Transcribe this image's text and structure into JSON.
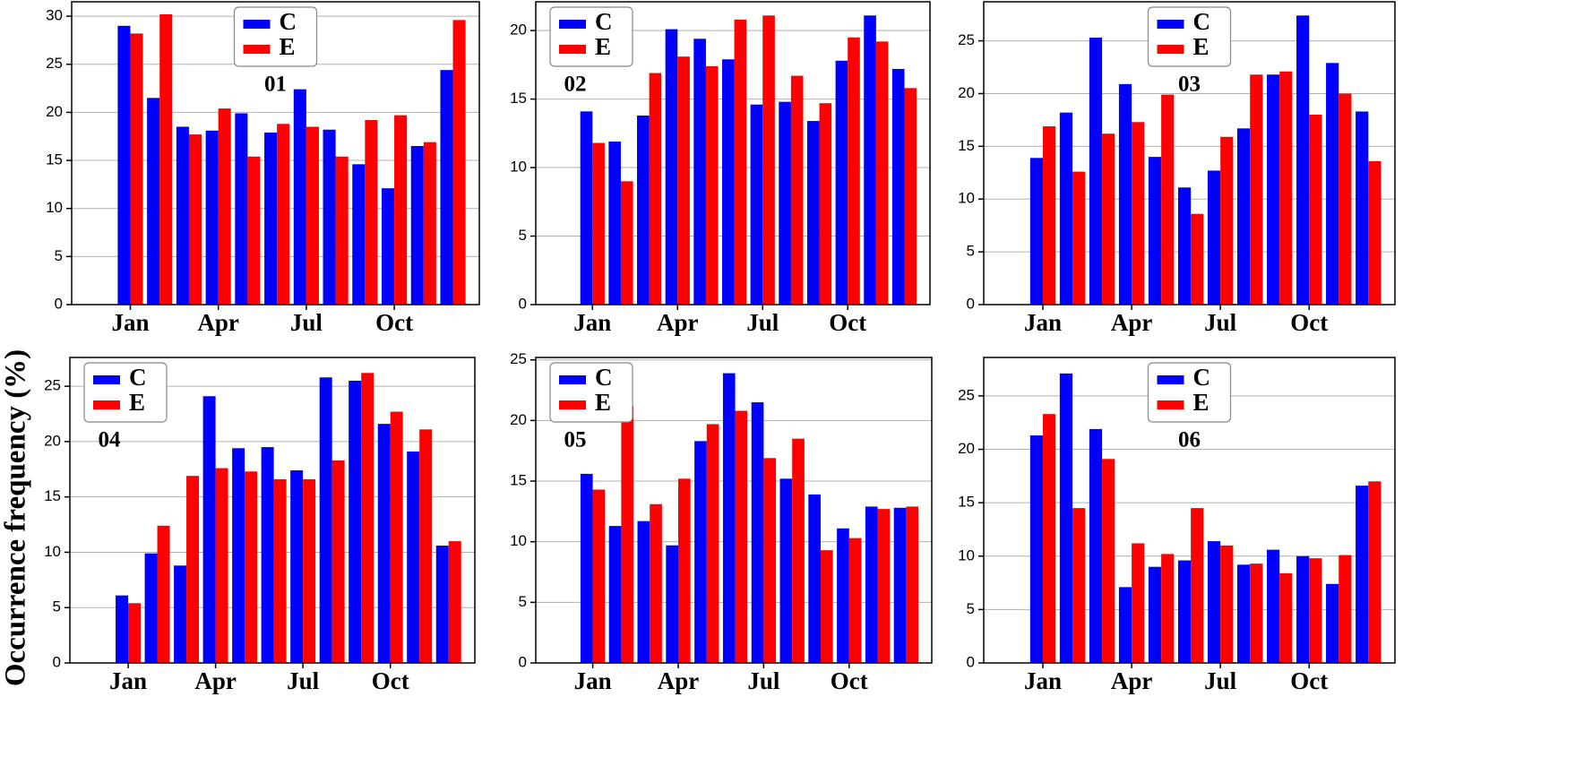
{
  "ylabel": "Occurrence frequency (%)",
  "chart_data": [
    {
      "type": "bar",
      "title": "01",
      "legend": "upper center",
      "grid": true,
      "categories": [
        "Jan",
        null,
        null,
        "Apr",
        null,
        null,
        "Jul",
        null,
        null,
        "Oct",
        null,
        null
      ],
      "ylim": [
        0,
        31.5
      ],
      "yticks": [
        0,
        5,
        10,
        15,
        20,
        25,
        30
      ],
      "series": [
        {
          "name": "C",
          "color": "#0000ff",
          "values": [
            29.0,
            21.5,
            18.5,
            18.1,
            19.9,
            17.9,
            22.4,
            18.2,
            14.6,
            12.1,
            16.5,
            24.4
          ]
        },
        {
          "name": "E",
          "color": "#ff0000",
          "values": [
            28.2,
            30.2,
            17.7,
            20.4,
            15.4,
            18.8,
            18.5,
            15.4,
            19.2,
            19.7,
            16.9,
            29.6
          ]
        }
      ]
    },
    {
      "type": "bar",
      "title": "02",
      "legend": "upper left",
      "grid": true,
      "categories": [
        "Jan",
        null,
        null,
        "Apr",
        null,
        null,
        "Jul",
        null,
        null,
        "Oct",
        null,
        null
      ],
      "ylim": [
        0,
        22.1
      ],
      "yticks": [
        0,
        5,
        10,
        15,
        20
      ],
      "series": [
        {
          "name": "C",
          "color": "#0000ff",
          "values": [
            14.1,
            11.9,
            13.8,
            20.1,
            19.4,
            17.9,
            14.6,
            14.8,
            13.4,
            17.8,
            21.1,
            17.2
          ]
        },
        {
          "name": "E",
          "color": "#ff0000",
          "values": [
            11.8,
            9.0,
            16.9,
            18.1,
            17.4,
            20.8,
            21.1,
            16.7,
            14.7,
            19.5,
            19.2,
            15.8
          ]
        }
      ]
    },
    {
      "type": "bar",
      "title": "03",
      "legend": "upper center",
      "grid": true,
      "categories": [
        "Jan",
        null,
        null,
        "Apr",
        null,
        null,
        "Jul",
        null,
        null,
        "Oct",
        null,
        null
      ],
      "ylim": [
        0,
        28.7
      ],
      "yticks": [
        0,
        5,
        10,
        15,
        20,
        25
      ],
      "series": [
        {
          "name": "C",
          "color": "#0000ff",
          "values": [
            13.9,
            18.2,
            25.3,
            20.9,
            14.0,
            11.1,
            12.7,
            16.7,
            21.8,
            27.4,
            22.9,
            18.3
          ]
        },
        {
          "name": "E",
          "color": "#ff0000",
          "values": [
            16.9,
            12.6,
            16.2,
            17.3,
            19.9,
            8.6,
            15.9,
            21.8,
            22.1,
            18.0,
            20.0,
            13.6
          ]
        }
      ]
    },
    {
      "type": "bar",
      "title": "04",
      "legend": "upper left",
      "grid": true,
      "categories": [
        "Jan",
        null,
        null,
        "Apr",
        null,
        null,
        "Jul",
        null,
        null,
        "Oct",
        null,
        null
      ],
      "ylim": [
        0,
        27.6
      ],
      "yticks": [
        0,
        5,
        10,
        15,
        20,
        25
      ],
      "series": [
        {
          "name": "C",
          "color": "#0000ff",
          "values": [
            6.1,
            9.9,
            8.8,
            24.1,
            19.4,
            19.5,
            17.4,
            25.8,
            25.5,
            21.6,
            19.1,
            10.6
          ]
        },
        {
          "name": "E",
          "color": "#ff0000",
          "values": [
            5.4,
            12.4,
            16.9,
            17.6,
            17.3,
            16.6,
            16.6,
            18.3,
            26.2,
            22.7,
            21.1,
            11.0
          ]
        }
      ]
    },
    {
      "type": "bar",
      "title": "05",
      "legend": "upper left",
      "grid": true,
      "categories": [
        "Jan",
        null,
        null,
        "Apr",
        null,
        null,
        "Jul",
        null,
        null,
        "Oct",
        null,
        null
      ],
      "ylim": [
        0,
        25.2
      ],
      "yticks": [
        0,
        5,
        10,
        15,
        20,
        25
      ],
      "series": [
        {
          "name": "C",
          "color": "#0000ff",
          "values": [
            15.6,
            11.3,
            11.7,
            9.7,
            18.3,
            23.9,
            21.5,
            15.2,
            13.9,
            11.1,
            12.9,
            12.8
          ]
        },
        {
          "name": "E",
          "color": "#ff0000",
          "values": [
            14.3,
            21.2,
            13.1,
            15.2,
            19.7,
            20.8,
            16.9,
            18.5,
            9.3,
            10.3,
            12.7,
            12.9
          ]
        }
      ]
    },
    {
      "type": "bar",
      "title": "06",
      "legend": "upper center",
      "grid": true,
      "categories": [
        "Jan",
        null,
        null,
        "Apr",
        null,
        null,
        "Jul",
        null,
        null,
        "Oct",
        null,
        null
      ],
      "ylim": [
        0,
        28.6
      ],
      "yticks": [
        0,
        5,
        10,
        15,
        20,
        25
      ],
      "series": [
        {
          "name": "C",
          "color": "#0000ff",
          "values": [
            21.3,
            27.1,
            21.9,
            7.1,
            9.0,
            9.6,
            11.4,
            9.2,
            10.6,
            10.0,
            7.4,
            16.6
          ]
        },
        {
          "name": "E",
          "color": "#ff0000",
          "values": [
            23.3,
            14.5,
            19.1,
            11.2,
            10.2,
            14.5,
            11.0,
            9.3,
            8.4,
            9.8,
            10.1,
            17.0
          ]
        }
      ]
    }
  ]
}
